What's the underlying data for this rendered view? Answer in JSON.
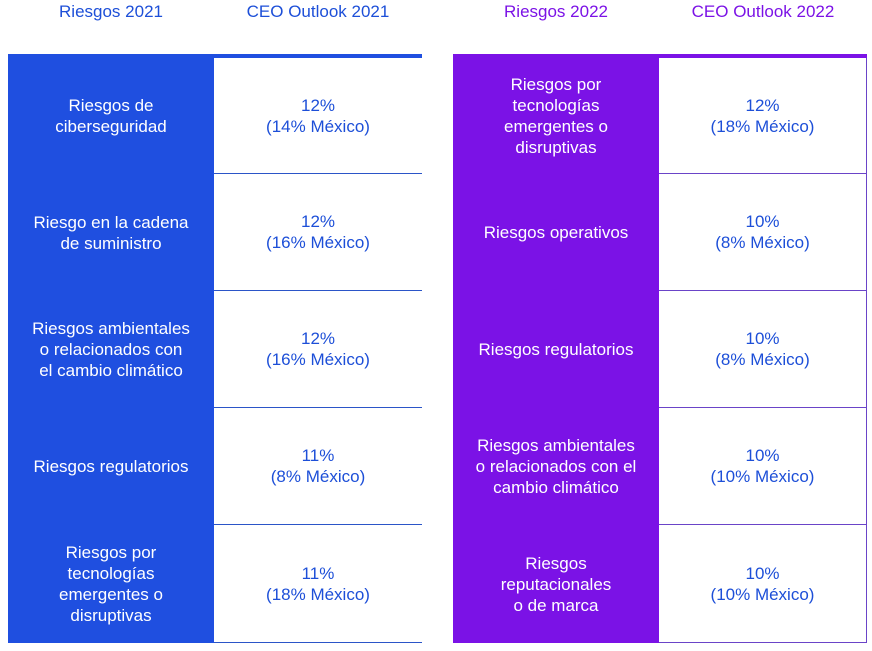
{
  "headers": {
    "riesgos_2021": "Riesgos 2021",
    "outlook_2021": "CEO Outlook 2021",
    "riesgos_2022": "Riesgos 2022",
    "outlook_2022": "CEO Outlook 2022"
  },
  "colors": {
    "blue": "#1f4fe0",
    "purple": "#7b12e6",
    "text_blue": "#1d4fd8"
  },
  "table_2021": [
    {
      "risk": "Riesgos de\nciberseguridad",
      "pct": "12%",
      "mexico": "(14% México)"
    },
    {
      "risk": "Riesgo en la cadena\nde suministro",
      "pct": "12%",
      "mexico": "(16% México)"
    },
    {
      "risk": "Riesgos ambientales\no relacionados con\nel cambio climático",
      "pct": "12%",
      "mexico": "(16% México)"
    },
    {
      "risk": "Riesgos regulatorios",
      "pct": "11%",
      "mexico": "(8% México)"
    },
    {
      "risk": "Riesgos por\ntecnologías\nemergentes o\ndisruptivas",
      "pct": "11%",
      "mexico": "(18% México)"
    }
  ],
  "table_2022": [
    {
      "risk": "Riesgos por\ntecnologías\nemergentes o\ndisruptivas",
      "pct": "12%",
      "mexico": "(18% México)"
    },
    {
      "risk": "Riesgos operativos",
      "pct": "10%",
      "mexico": "(8% México)"
    },
    {
      "risk": "Riesgos regulatorios",
      "pct": "10%",
      "mexico": "(8% México)"
    },
    {
      "risk": "Riesgos ambientales\no relacionados con el\ncambio climático",
      "pct": "10%",
      "mexico": "(10% México)"
    },
    {
      "risk": "Riesgos\nreputacionales\no de marca",
      "pct": "10%",
      "mexico": "(10% México)"
    }
  ]
}
